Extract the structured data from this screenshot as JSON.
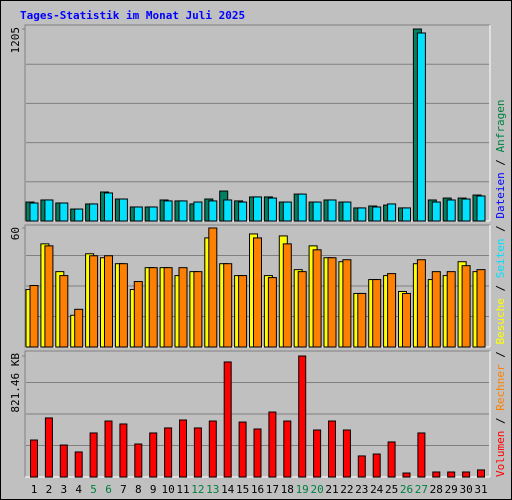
{
  "title": "Tages-Statistik im Monat Juli 2025",
  "legend_separator": " / ",
  "legend": [
    {
      "label": "Volumen",
      "color": "#ff0000"
    },
    {
      "label": "Rechner",
      "color": "#ff8000"
    },
    {
      "label": "Besuche",
      "color": "#ffff00"
    },
    {
      "label": "Seiten",
      "color": "#00e0ff"
    },
    {
      "label": "Dateien",
      "color": "#0000ff"
    },
    {
      "label": "Anfragen",
      "color": "#008040"
    }
  ],
  "chart_data": [
    {
      "type": "bar",
      "ylim": [
        0,
        1205
      ],
      "yticks": [
        1205
      ],
      "grid_divisions": 5,
      "series": [
        {
          "color": "#008060",
          "values": [
            119,
            132,
            113,
            75,
            107,
            182,
            138,
            88,
            88,
            132,
            126,
            107,
            138,
            188,
            126,
            151,
            151,
            119,
            169,
            119,
            132,
            119,
            82,
            94,
            100,
            82,
            1205,
            132,
            144,
            144,
            163
          ]
        },
        {
          "color": "#00e0ff",
          "values": [
            113,
            132,
            113,
            75,
            107,
            176,
            138,
            88,
            88,
            126,
            126,
            119,
            126,
            132,
            119,
            151,
            144,
            119,
            169,
            119,
            132,
            119,
            82,
            88,
            107,
            82,
            1180,
            119,
            132,
            138,
            157
          ]
        }
      ]
    },
    {
      "type": "bar",
      "ylim": [
        0,
        60
      ],
      "yticks": [
        60
      ],
      "grid_divisions": 4,
      "series": [
        {
          "color": "#ffff00",
          "values": [
            29,
            52,
            38,
            16,
            47,
            45,
            42,
            29,
            40,
            40,
            36,
            38,
            55,
            42,
            36,
            57,
            36,
            56,
            39,
            51,
            45,
            43,
            27,
            34,
            36,
            28,
            42,
            34,
            36,
            43,
            38
          ]
        },
        {
          "color": "#ff8000",
          "values": [
            31,
            51,
            36,
            19,
            46,
            46,
            42,
            33,
            40,
            40,
            40,
            38,
            60,
            42,
            36,
            55,
            35,
            52,
            38,
            49,
            45,
            44,
            27,
            34,
            37,
            27,
            44,
            38,
            38,
            41,
            39
          ]
        }
      ]
    },
    {
      "type": "bar",
      "ylim": [
        0,
        821.46
      ],
      "yticks": [
        {
          "value": 821.46,
          "label": "821.46 KB"
        }
      ],
      "grid_divisions": 4,
      "categories": [
        "1",
        "2",
        "3",
        "4",
        "5",
        "6",
        "7",
        "8",
        "9",
        "10",
        "11",
        "12",
        "13",
        "14",
        "15",
        "16",
        "17",
        "18",
        "19",
        "20",
        "21",
        "22",
        "23",
        "24",
        "25",
        "26",
        "27",
        "28",
        "29",
        "30",
        "31"
      ],
      "category_colors": [
        "#000000",
        "#000000",
        "#000000",
        "#000000",
        "#008040",
        "#008040",
        "#000000",
        "#000000",
        "#000000",
        "#000000",
        "#000000",
        "#008040",
        "#008040",
        "#000000",
        "#000000",
        "#000000",
        "#000000",
        "#000000",
        "#008040",
        "#008040",
        "#000000",
        "#000000",
        "#000000",
        "#000000",
        "#000000",
        "#008040",
        "#008040",
        "#000000",
        "#000000",
        "#000000",
        "#000000"
      ],
      "series": [
        {
          "color": "#ff0000",
          "values": [
            251,
            401,
            217,
            170,
            299,
            380,
            360,
            224,
            299,
            333,
            387,
            333,
            380,
            781,
            373,
            326,
            441,
            380,
            821.46,
            319,
            380,
            319,
            143,
            156,
            238,
            27,
            299,
            34,
            34,
            34,
            48
          ]
        }
      ]
    }
  ]
}
